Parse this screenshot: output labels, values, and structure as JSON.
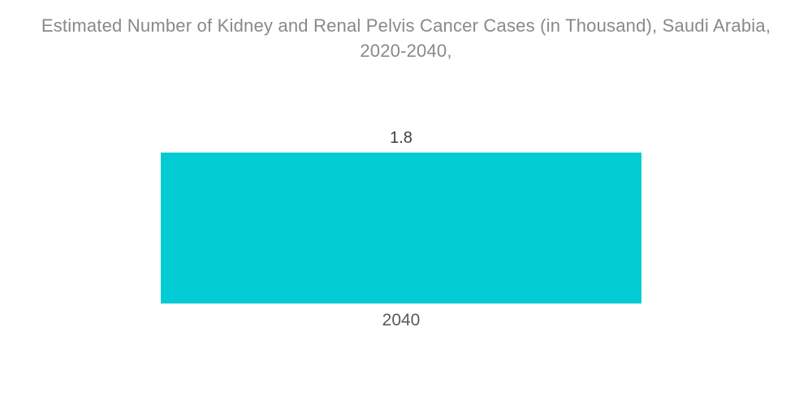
{
  "title": {
    "line1": "Estimated Number of Kidney and Renal Pelvis Cancer Cases (in Thousand), Saudi Arabia,",
    "line2": "2020-2040,"
  },
  "chart_data": {
    "type": "bar",
    "title": "Estimated Number of Kidney and Renal Pelvis Cancer Cases (in Thousand), Saudi Arabia, 2020-2040,",
    "categories": [
      "2040"
    ],
    "values": [
      1.8
    ],
    "value_labels": [
      "1.8"
    ],
    "xlabel": "",
    "ylabel": "",
    "ylim": [
      0,
      1.8
    ],
    "grid": false,
    "legend_position": "none",
    "orientation": "vertical"
  },
  "colors": {
    "background": "#FFFFFF",
    "bar": "#02CBD3",
    "title_text": "#87898C",
    "value_label_text": "#3F4043",
    "category_label_text": "#58595B"
  }
}
